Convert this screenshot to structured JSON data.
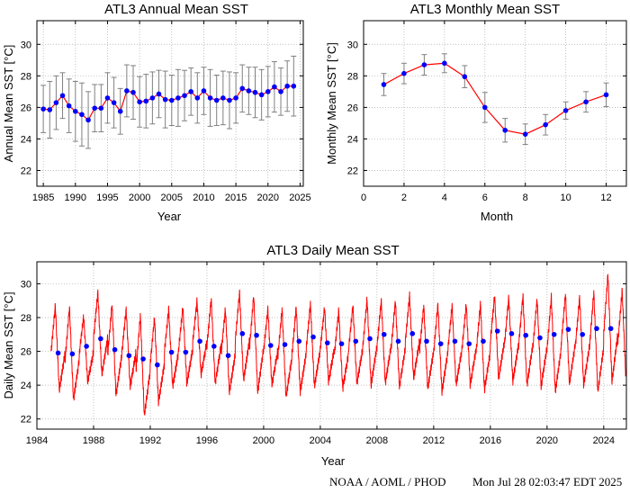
{
  "colors": {
    "line": "#ff0000",
    "marker": "#0000ff",
    "errorbar": "#808080",
    "grid": "#aaaaaa"
  },
  "footer": {
    "org": "NOAA / AOML / PHOD",
    "timestamp": "Mon Jul 28 02:03:47 EDT 2025"
  },
  "chart_data": [
    {
      "type": "line",
      "title": "ATL3 Annual Mean SST",
      "xlabel": "Year",
      "ylabel": "Annual Mean SST [°C]",
      "xlim": [
        1984,
        2025.5
      ],
      "ylim": [
        21,
        31.5
      ],
      "xticks": [
        1985,
        1990,
        1995,
        2000,
        2005,
        2010,
        2015,
        2020,
        2025
      ],
      "yticks": [
        22,
        24,
        26,
        28,
        30
      ],
      "grid": true,
      "x": [
        1985,
        1986,
        1987,
        1988,
        1989,
        1990,
        1991,
        1992,
        1993,
        1994,
        1995,
        1996,
        1997,
        1998,
        1999,
        2000,
        2001,
        2002,
        2003,
        2004,
        2005,
        2006,
        2007,
        2008,
        2009,
        2010,
        2011,
        2012,
        2013,
        2014,
        2015,
        2016,
        2017,
        2018,
        2019,
        2020,
        2021,
        2022,
        2023,
        2024
      ],
      "y": [
        25.9,
        25.85,
        26.3,
        26.75,
        26.1,
        25.75,
        25.55,
        25.2,
        25.95,
        25.95,
        26.6,
        26.3,
        25.75,
        27.05,
        26.95,
        26.35,
        26.4,
        26.6,
        26.85,
        26.5,
        26.45,
        26.6,
        26.75,
        27.0,
        26.6,
        27.05,
        26.6,
        26.45,
        26.6,
        26.45,
        26.6,
        27.2,
        27.05,
        26.95,
        26.8,
        27.0,
        27.3,
        27.0,
        27.35,
        27.35
      ],
      "error": [
        1.5,
        1.8,
        1.7,
        1.45,
        1.7,
        1.9,
        2.0,
        1.8,
        1.5,
        1.5,
        1.6,
        1.6,
        1.45,
        1.65,
        1.7,
        1.6,
        1.7,
        1.65,
        1.5,
        1.8,
        1.6,
        1.8,
        1.6,
        1.5,
        1.6,
        1.5,
        1.8,
        1.6,
        1.7,
        1.8,
        1.6,
        1.5,
        1.5,
        1.6,
        1.6,
        1.6,
        1.6,
        1.5,
        1.6,
        1.9
      ]
    },
    {
      "type": "line",
      "title": "ATL3 Monthly Mean SST",
      "xlabel": "Month",
      "ylabel": "Monthly Mean SST [°C]",
      "xlim": [
        0,
        13
      ],
      "ylim": [
        21,
        31.5
      ],
      "xticks": [
        0,
        2,
        4,
        6,
        8,
        10,
        12
      ],
      "yticks": [
        22,
        24,
        26,
        28,
        30
      ],
      "grid": true,
      "x": [
        1,
        2,
        3,
        4,
        5,
        6,
        7,
        8,
        9,
        10,
        11,
        12
      ],
      "y": [
        27.45,
        28.15,
        28.7,
        28.8,
        27.95,
        26.0,
        24.55,
        24.3,
        24.9,
        25.8,
        26.35,
        26.8
      ],
      "error": [
        0.7,
        0.65,
        0.65,
        0.6,
        0.7,
        0.95,
        0.75,
        0.65,
        0.65,
        0.55,
        0.65,
        0.75
      ]
    },
    {
      "type": "line",
      "title": "ATL3 Daily Mean SST",
      "xlabel": "Year",
      "ylabel": "Daily Mean SST [°C]",
      "xlim": [
        1984,
        2025.6
      ],
      "ylim": [
        21.4,
        31.3
      ],
      "xticks": [
        1984,
        1988,
        1992,
        1996,
        2000,
        2004,
        2008,
        2012,
        2016,
        2020,
        2024
      ],
      "yticks": [
        22,
        24,
        26,
        28,
        30
      ],
      "grid": true,
      "daily_series": {
        "start": 1985.0,
        "end": 2025.55,
        "annual_minima": [
          23.7,
          23.1,
          24.2,
          24.6,
          23.4,
          23.9,
          22.2,
          23.0,
          23.9,
          24.1,
          24.6,
          24.1,
          23.6,
          24.3,
          23.6,
          24.0,
          23.3,
          23.6,
          23.9,
          24.2,
          23.8,
          24.1,
          24.0,
          24.1,
          23.9,
          24.4,
          23.8,
          23.6,
          24.0,
          24.0,
          23.7,
          24.4,
          24.2,
          24.0,
          23.9,
          23.6,
          24.1,
          24.0,
          23.6,
          24.2,
          24.0,
          23.8
        ],
        "annual_maxima": [
          28.7,
          28.6,
          28.1,
          29.5,
          28.8,
          28.5,
          28.1,
          28.0,
          28.5,
          28.6,
          29.0,
          29.1,
          28.5,
          29.5,
          29.3,
          28.5,
          28.5,
          28.6,
          28.8,
          28.6,
          28.4,
          28.7,
          29.1,
          29.0,
          29.0,
          29.3,
          28.7,
          28.8,
          28.7,
          28.8,
          28.8,
          29.3,
          29.2,
          29.3,
          29.1,
          29.2,
          29.4,
          29.2,
          29.5,
          30.6,
          29.6,
          29.0
        ]
      },
      "annual_points": {
        "x": [
          1985.5,
          1986.5,
          1987.5,
          1988.5,
          1989.5,
          1990.5,
          1991.5,
          1992.5,
          1993.5,
          1994.5,
          1995.5,
          1996.5,
          1997.5,
          1998.5,
          1999.5,
          2000.5,
          2001.5,
          2002.5,
          2003.5,
          2004.5,
          2005.5,
          2006.5,
          2007.5,
          2008.5,
          2009.5,
          2010.5,
          2011.5,
          2012.5,
          2013.5,
          2014.5,
          2015.5,
          2016.5,
          2017.5,
          2018.5,
          2019.5,
          2020.5,
          2021.5,
          2022.5,
          2023.5,
          2024.5
        ],
        "y": [
          25.9,
          25.85,
          26.3,
          26.75,
          26.1,
          25.75,
          25.55,
          25.2,
          25.95,
          25.95,
          26.6,
          26.3,
          25.75,
          27.05,
          26.95,
          26.35,
          26.4,
          26.6,
          26.85,
          26.5,
          26.45,
          26.6,
          26.75,
          27.0,
          26.6,
          27.05,
          26.6,
          26.45,
          26.6,
          26.45,
          26.6,
          27.2,
          27.05,
          26.95,
          26.8,
          27.0,
          27.3,
          27.0,
          27.35,
          27.35
        ]
      }
    }
  ]
}
